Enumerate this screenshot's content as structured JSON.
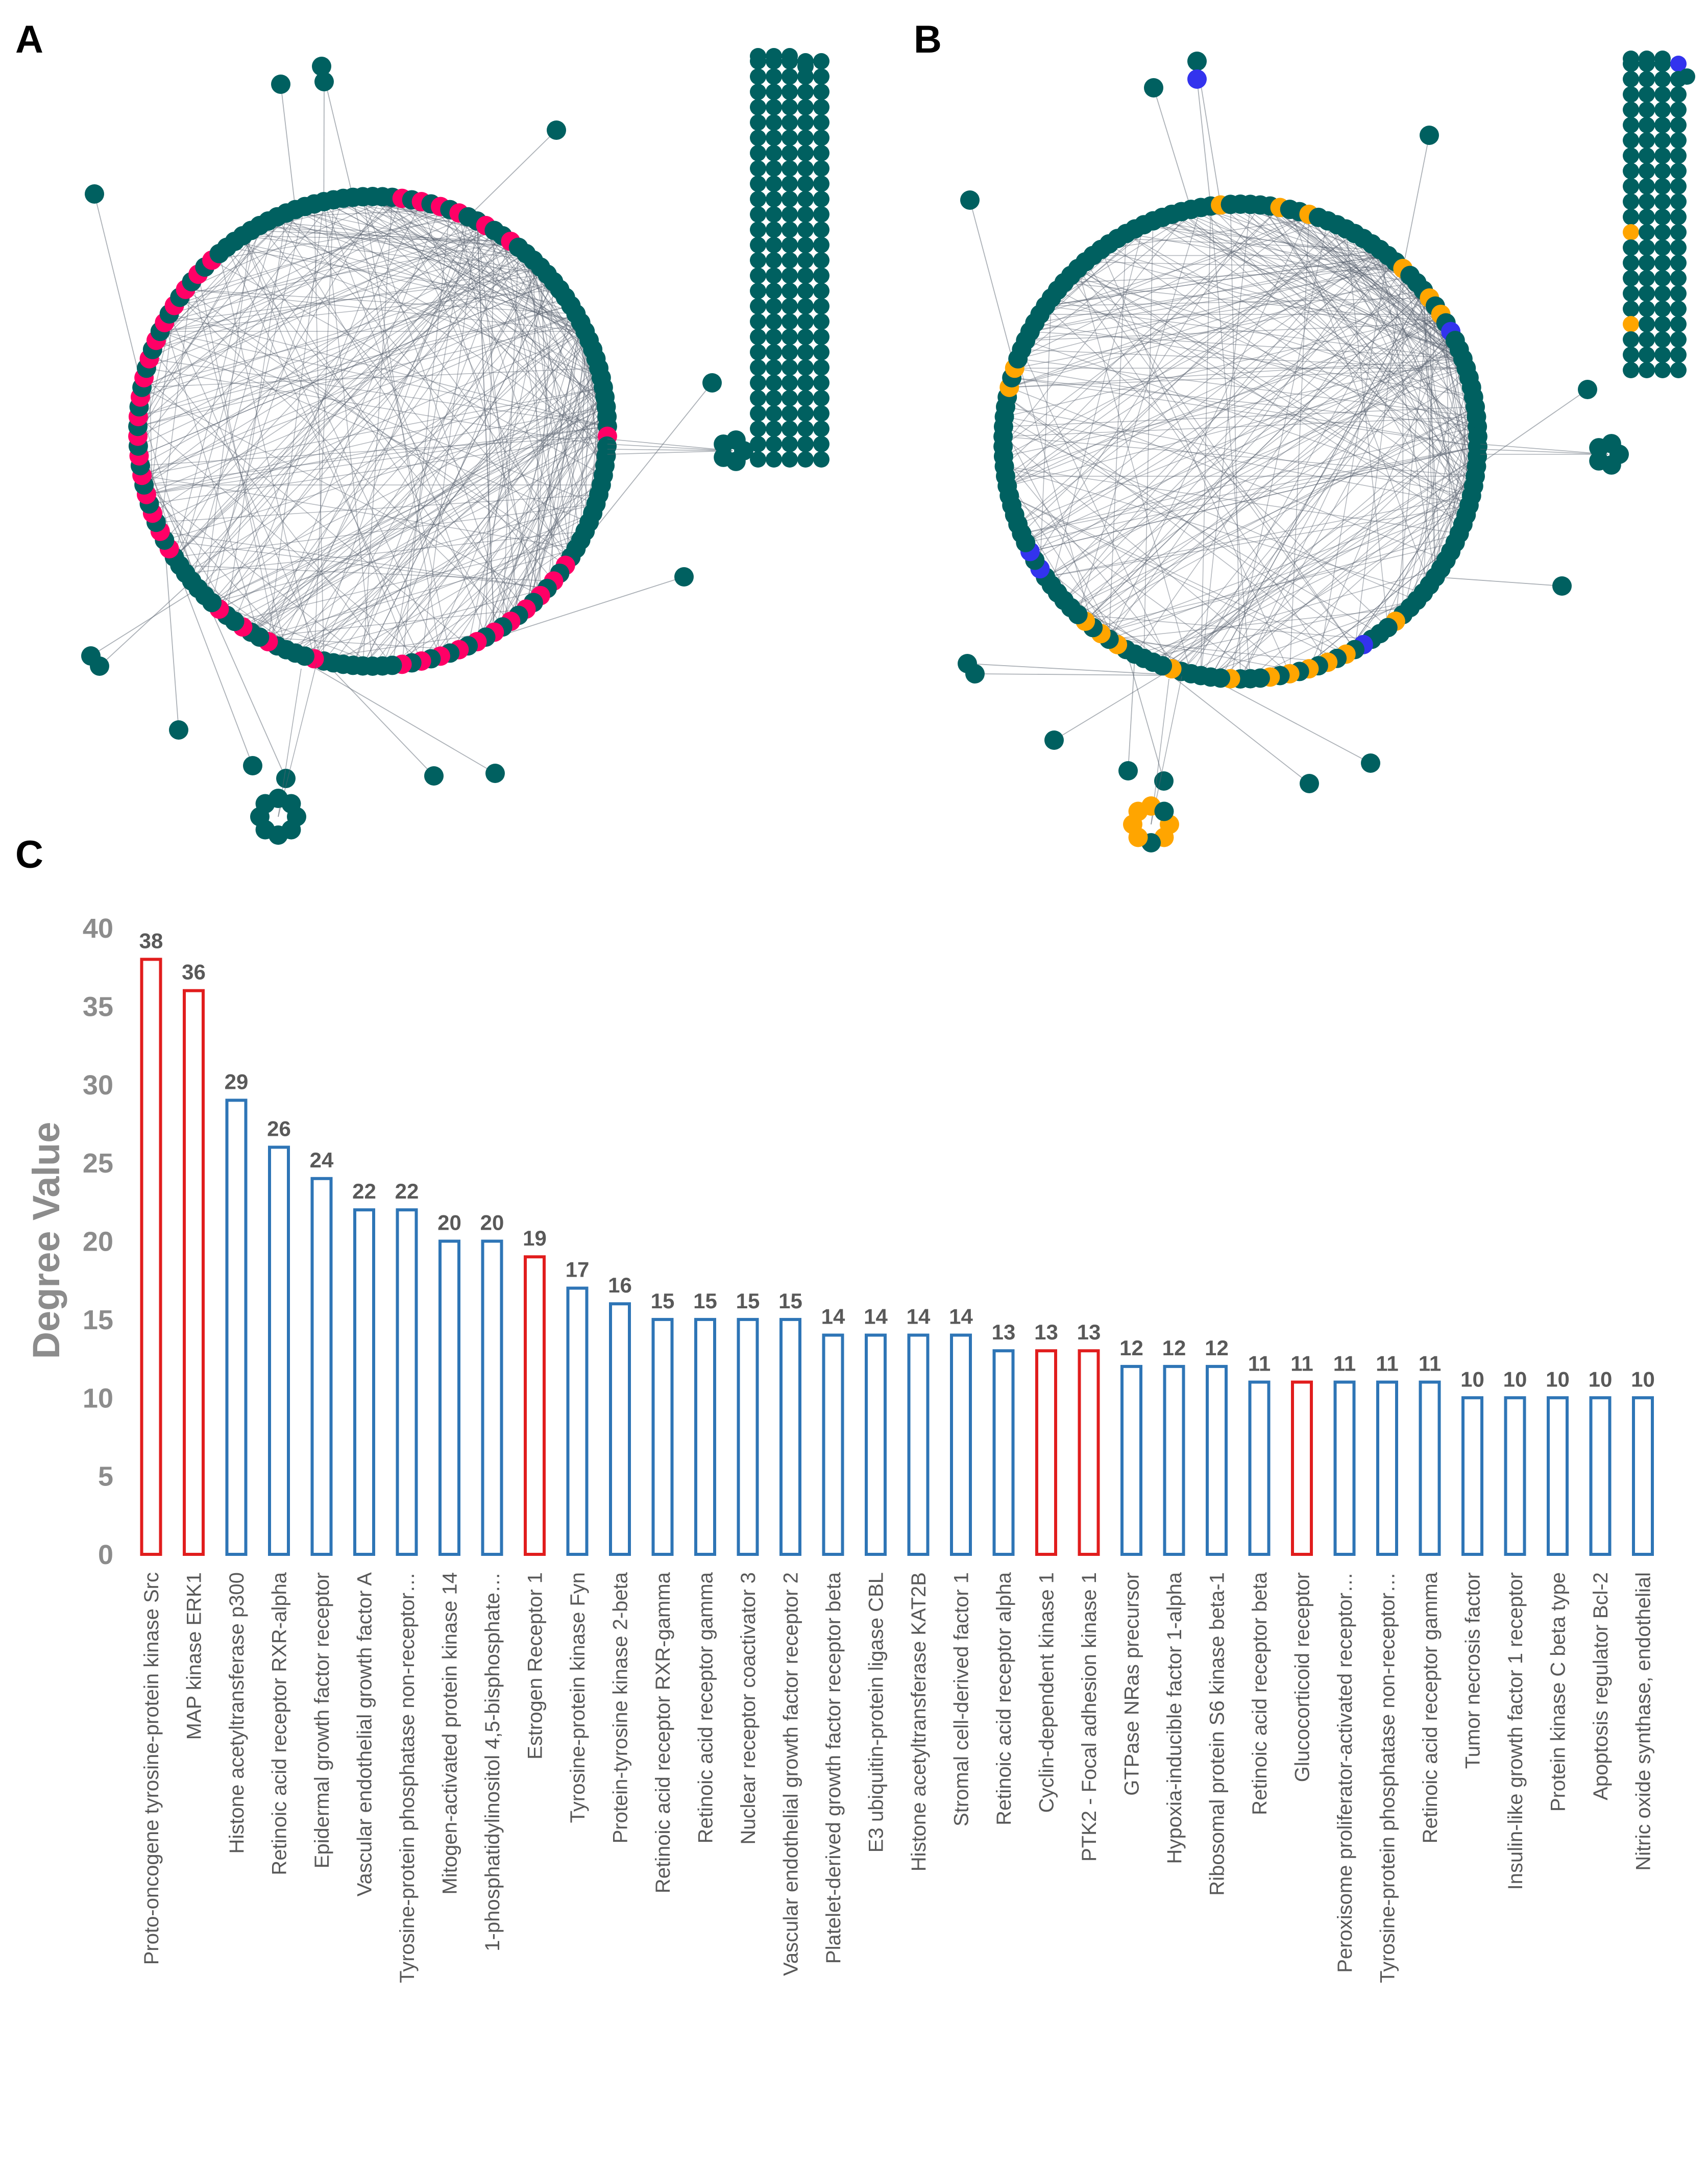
{
  "panels": {
    "a": "A",
    "b": "B",
    "c": "C"
  },
  "network": {
    "node_color": "#006060",
    "edge_color": "#5a6470",
    "highlight_a": "#ff0066",
    "highlight_b_orange": "#ffa500",
    "highlight_b_blue": "#3333ee"
  },
  "chart_data": {
    "type": "bar",
    "title": "",
    "xlabel": "",
    "ylabel": "Degree Value",
    "ylim": [
      0,
      40
    ],
    "yticks": [
      0,
      5,
      10,
      15,
      20,
      25,
      30,
      35,
      40
    ],
    "grid": false,
    "bar_style": "outline",
    "colors": {
      "default": "#2e75b6",
      "highlight": "#e11d1d"
    },
    "categories": [
      "Proto-oncogene tyrosine-protein kinase Src",
      "MAP kinase ERK1",
      "Histone acetyltransferase p300",
      "Retinoic acid receptor RXR-alpha",
      "Epidermal growth factor receptor",
      "Vascular endothelial growth factor A",
      "Tyrosine-protein phosphatase non-receptor…",
      "Mitogen-activated protein kinase 14",
      "1-phosphatidylinositol 4,5-bisphosphate…",
      "Estrogen Receptor 1",
      "Tyrosine-protein kinase Fyn",
      "Protein-tyrosine kinase 2-beta",
      "Retinoic acid receptor RXR-gamma",
      "Retinoic acid receptor gamma",
      "Nuclear receptor coactivator 3",
      "Vascular endothelial growth factor receptor 2",
      "Platelet-derived growth factor receptor beta",
      "E3 ubiquitin-protein ligase CBL",
      "Histone acetyltransferase KAT2B",
      "Stromal cell-derived factor 1",
      "Retinoic acid receptor alpha",
      "Cyclin-dependent kinase 1",
      "PTK2 - Focal adhesion kinase 1",
      "GTPase NRas precursor",
      "Hypoxia-inducible factor 1-alpha",
      "Ribosomal protein S6 kinase beta-1",
      "Retinoic acid receptor beta",
      "Glucocorticoid receptor",
      "Peroxisome proliferator-activated receptor…",
      "Tyrosine-protein phosphatase non-receptor…",
      "Retinoic acid receptor gamma",
      "Tumor necrosis factor",
      "Insulin-like growth factor 1 receptor",
      "Protein kinase C beta type",
      "Apoptosis regulator Bcl-2",
      "Nitric oxide synthase, endothelial"
    ],
    "values": [
      38,
      36,
      29,
      26,
      24,
      22,
      22,
      20,
      20,
      19,
      17,
      16,
      15,
      15,
      15,
      15,
      14,
      14,
      14,
      14,
      13,
      13,
      13,
      12,
      12,
      12,
      11,
      11,
      11,
      11,
      11,
      10,
      10,
      10,
      10,
      10
    ],
    "highlighted": [
      true,
      true,
      false,
      false,
      false,
      false,
      false,
      false,
      false,
      true,
      false,
      false,
      false,
      false,
      false,
      false,
      false,
      false,
      false,
      false,
      false,
      true,
      true,
      false,
      false,
      false,
      false,
      true,
      false,
      false,
      false,
      false,
      false,
      false,
      false,
      false
    ]
  }
}
